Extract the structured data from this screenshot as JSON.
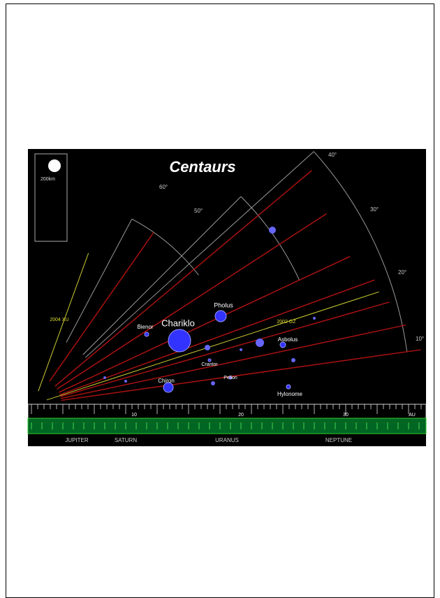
{
  "title": "Centaurs",
  "legend": {
    "size_label": "200km"
  },
  "angle_labels": [
    "60°",
    "50°",
    "40°",
    "30°",
    "20°",
    "10°"
  ],
  "objects": [
    {
      "label": "Chariklo"
    },
    {
      "label": "Pholus"
    },
    {
      "label": "Bienor"
    },
    {
      "label": "Chiron"
    },
    {
      "label": "Hylonome"
    },
    {
      "label": "Asbolus"
    },
    {
      "label": "Pelion"
    },
    {
      "label": "Crantor"
    }
  ],
  "designations": [
    "2004 XU",
    "2002 GZ"
  ],
  "scale_labels": [
    "10",
    "20",
    "30",
    "AU"
  ],
  "planets": [
    "JUPITER",
    "SATURN",
    "URANUS",
    "NEPTUNE"
  ]
}
